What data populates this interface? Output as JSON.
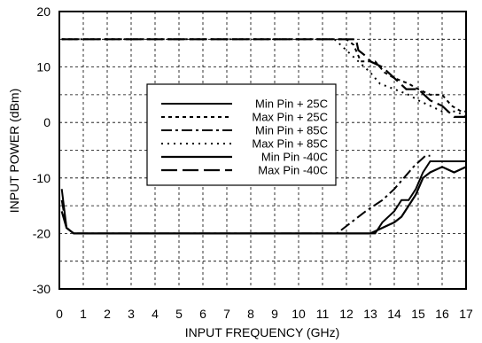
{
  "chart_data": {
    "type": "line",
    "xlabel": "INPUT  FREQUENCY (GHz)",
    "ylabel": "INPUT POWER (dBm)",
    "xlim": [
      0,
      17
    ],
    "ylim": [
      -30,
      20
    ],
    "xticks": [
      0,
      1,
      2,
      3,
      4,
      5,
      6,
      7,
      8,
      9,
      10,
      11,
      12,
      13,
      14,
      15,
      16,
      17
    ],
    "yticks": [
      -30,
      -20,
      -10,
      0,
      10,
      20
    ],
    "grid": true,
    "legend_position": "center",
    "series": [
      {
        "name": "Min Pin  + 25C",
        "style": "solid",
        "points": [
          [
            0.1,
            -12
          ],
          [
            0.3,
            -19
          ],
          [
            0.6,
            -20
          ],
          [
            12.5,
            -20
          ],
          [
            13.2,
            -20
          ],
          [
            13.5,
            -18
          ],
          [
            14.0,
            -16
          ],
          [
            14.3,
            -14
          ],
          [
            14.6,
            -14
          ],
          [
            14.9,
            -12
          ],
          [
            15.2,
            -9
          ],
          [
            15.5,
            -7
          ],
          [
            17.0,
            -7
          ]
        ]
      },
      {
        "name": "Max Pin  + 25C",
        "style": "dotted",
        "points": [
          [
            0.1,
            15
          ],
          [
            12.0,
            15
          ],
          [
            12.3,
            14
          ],
          [
            12.6,
            11
          ],
          [
            13.2,
            11
          ],
          [
            13.4,
            10
          ],
          [
            13.6,
            9
          ],
          [
            14.0,
            8
          ],
          [
            14.6,
            7
          ],
          [
            15.0,
            6
          ],
          [
            15.5,
            5
          ],
          [
            16.0,
            5
          ],
          [
            16.4,
            3
          ],
          [
            16.8,
            2
          ],
          [
            17.0,
            2
          ]
        ]
      },
      {
        "name": "Min Pin  + 85C",
        "style": "dash-dot",
        "points": [
          [
            0.1,
            -14
          ],
          [
            0.3,
            -19
          ],
          [
            0.6,
            -20
          ],
          [
            11.6,
            -20
          ],
          [
            12.2,
            -18
          ],
          [
            12.8,
            -16
          ],
          [
            13.5,
            -14
          ],
          [
            14.0,
            -12
          ],
          [
            14.4,
            -10
          ],
          [
            14.8,
            -8
          ],
          [
            15.3,
            -6
          ],
          [
            15.5,
            -6
          ]
        ]
      },
      {
        "name": "Max Pin  + 85C",
        "style": "fine-dotted",
        "points": [
          [
            0.1,
            15
          ],
          [
            11.5,
            15
          ],
          [
            12.0,
            13
          ],
          [
            12.5,
            11
          ],
          [
            13.0,
            9
          ],
          [
            13.4,
            7
          ],
          [
            14.0,
            6
          ],
          [
            14.6,
            5
          ],
          [
            15.0,
            4
          ],
          [
            15.5,
            3
          ],
          [
            16.0,
            2
          ],
          [
            16.6,
            2
          ],
          [
            17.0,
            1
          ]
        ]
      },
      {
        "name": "Min Pin    -40C",
        "style": "long-solid",
        "points": [
          [
            0.1,
            -16
          ],
          [
            0.3,
            -19
          ],
          [
            0.6,
            -20
          ],
          [
            13.0,
            -20
          ],
          [
            13.5,
            -19
          ],
          [
            14.0,
            -18
          ],
          [
            14.3,
            -17
          ],
          [
            14.6,
            -15
          ],
          [
            14.9,
            -13
          ],
          [
            15.2,
            -10
          ],
          [
            15.5,
            -9
          ],
          [
            16.0,
            -8
          ],
          [
            16.5,
            -9
          ],
          [
            17.0,
            -8
          ]
        ]
      },
      {
        "name": "Max Pin   -40C",
        "style": "long-dash",
        "points": [
          [
            0.1,
            15
          ],
          [
            12.4,
            15
          ],
          [
            12.5,
            13
          ],
          [
            12.8,
            12
          ],
          [
            13.0,
            11
          ],
          [
            13.5,
            10
          ],
          [
            14.0,
            8
          ],
          [
            14.5,
            6
          ],
          [
            15.0,
            6
          ],
          [
            15.5,
            4
          ],
          [
            16.0,
            3
          ],
          [
            16.5,
            1
          ],
          [
            17.0,
            1
          ]
        ]
      }
    ]
  }
}
